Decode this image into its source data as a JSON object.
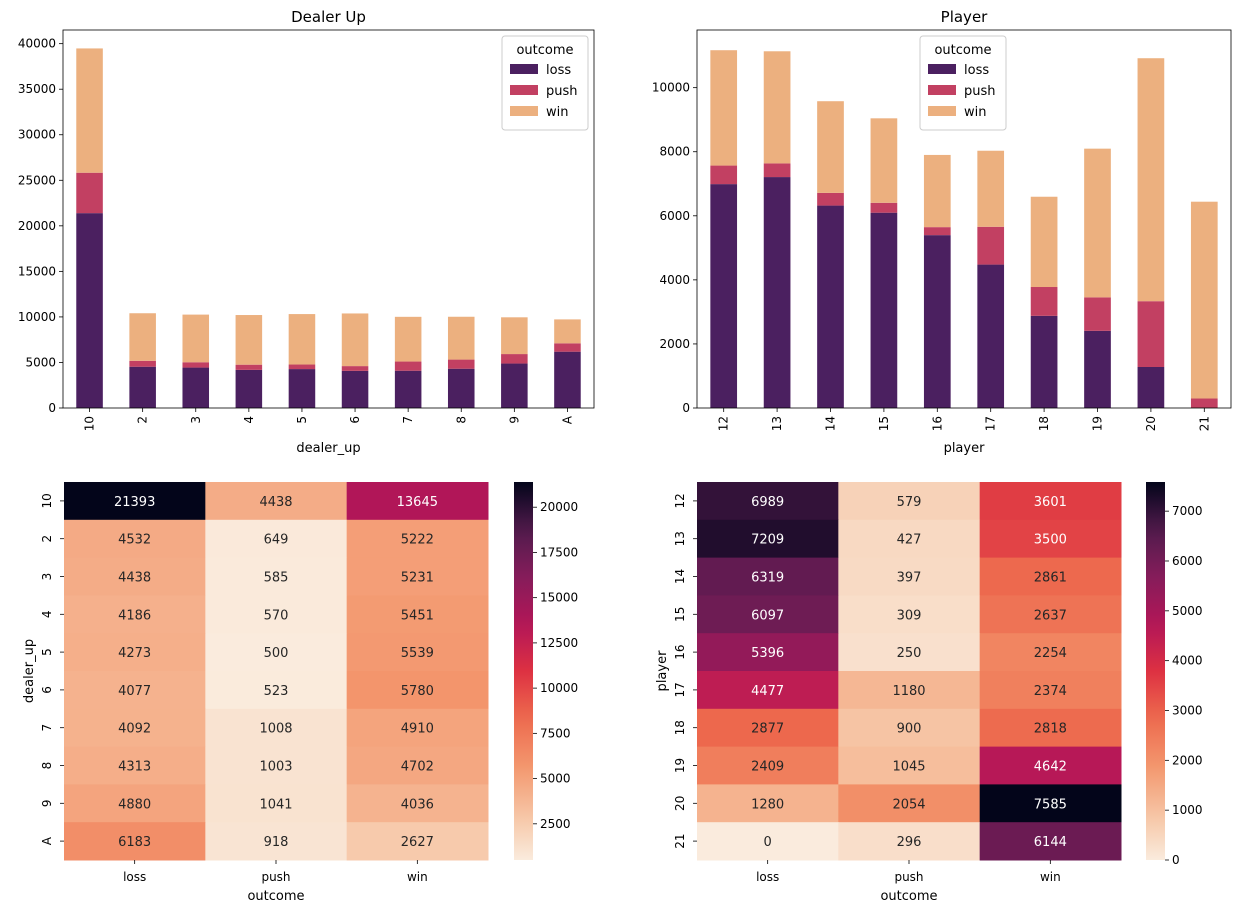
{
  "palette": {
    "loss": "#4b2060",
    "push": "#c24062",
    "win": "#ecb07f"
  },
  "chart_data": [
    {
      "type": "bar",
      "stacked": true,
      "title": "Dealer Up",
      "xlabel": "dealer_up",
      "ylabel": "",
      "ylim": [
        0,
        41500
      ],
      "yticks": [
        0,
        5000,
        10000,
        15000,
        20000,
        25000,
        30000,
        35000,
        40000
      ],
      "categories": [
        "10",
        "2",
        "3",
        "4",
        "5",
        "6",
        "7",
        "8",
        "9",
        "A"
      ],
      "legend": {
        "title": "outcome",
        "position": "top-right"
      },
      "series": [
        {
          "name": "loss",
          "values": [
            21393,
            4532,
            4438,
            4186,
            4273,
            4077,
            4092,
            4313,
            4880,
            6183
          ]
        },
        {
          "name": "push",
          "values": [
            4438,
            649,
            585,
            570,
            500,
            523,
            1008,
            1003,
            1041,
            918
          ]
        },
        {
          "name": "win",
          "values": [
            13645,
            5222,
            5231,
            5451,
            5539,
            5780,
            4910,
            4702,
            4036,
            2627
          ]
        }
      ]
    },
    {
      "type": "bar",
      "stacked": true,
      "title": "Player",
      "xlabel": "player",
      "ylabel": "",
      "ylim": [
        0,
        11800
      ],
      "yticks": [
        0,
        2000,
        4000,
        6000,
        8000,
        10000
      ],
      "categories": [
        "12",
        "13",
        "14",
        "15",
        "16",
        "17",
        "18",
        "19",
        "20",
        "21"
      ],
      "legend": {
        "title": "outcome",
        "position": "top-center"
      },
      "series": [
        {
          "name": "loss",
          "values": [
            6989,
            7209,
            6319,
            6097,
            5396,
            4477,
            2877,
            2409,
            1280,
            0
          ]
        },
        {
          "name": "push",
          "values": [
            579,
            427,
            397,
            309,
            250,
            1180,
            900,
            1045,
            2054,
            296
          ]
        },
        {
          "name": "win",
          "values": [
            3601,
            3500,
            2861,
            2637,
            2254,
            2374,
            2818,
            4642,
            7585,
            6144
          ]
        }
      ]
    },
    {
      "type": "heatmap",
      "title": "",
      "xlabel": "outcome",
      "ylabel": "dealer_up",
      "columns": [
        "loss",
        "push",
        "win"
      ],
      "rows": [
        "10",
        "2",
        "3",
        "4",
        "5",
        "6",
        "7",
        "8",
        "9",
        "A"
      ],
      "values": [
        [
          21393,
          4438,
          13645
        ],
        [
          4532,
          649,
          5222
        ],
        [
          4438,
          585,
          5231
        ],
        [
          4186,
          570,
          5451
        ],
        [
          4273,
          500,
          5539
        ],
        [
          4077,
          523,
          5780
        ],
        [
          4092,
          1008,
          4910
        ],
        [
          4313,
          1003,
          4702
        ],
        [
          4880,
          1041,
          4036
        ],
        [
          6183,
          918,
          2627
        ]
      ],
      "colorbar": {
        "min": 500,
        "max": 21393,
        "ticks": [
          2500,
          5000,
          7500,
          10000,
          12500,
          15000,
          17500,
          20000
        ]
      }
    },
    {
      "type": "heatmap",
      "title": "",
      "xlabel": "outcome",
      "ylabel": "player",
      "columns": [
        "loss",
        "push",
        "win"
      ],
      "rows": [
        "12",
        "13",
        "14",
        "15",
        "16",
        "17",
        "18",
        "19",
        "20",
        "21"
      ],
      "values": [
        [
          6989,
          579,
          3601
        ],
        [
          7209,
          427,
          3500
        ],
        [
          6319,
          397,
          2861
        ],
        [
          6097,
          309,
          2637
        ],
        [
          5396,
          250,
          2254
        ],
        [
          4477,
          1180,
          2374
        ],
        [
          2877,
          900,
          2818
        ],
        [
          2409,
          1045,
          4642
        ],
        [
          1280,
          2054,
          7585
        ],
        [
          0,
          296,
          6144
        ]
      ],
      "colorbar": {
        "min": 0,
        "max": 7585,
        "ticks": [
          0,
          1000,
          2000,
          3000,
          4000,
          5000,
          6000,
          7000
        ]
      }
    }
  ]
}
